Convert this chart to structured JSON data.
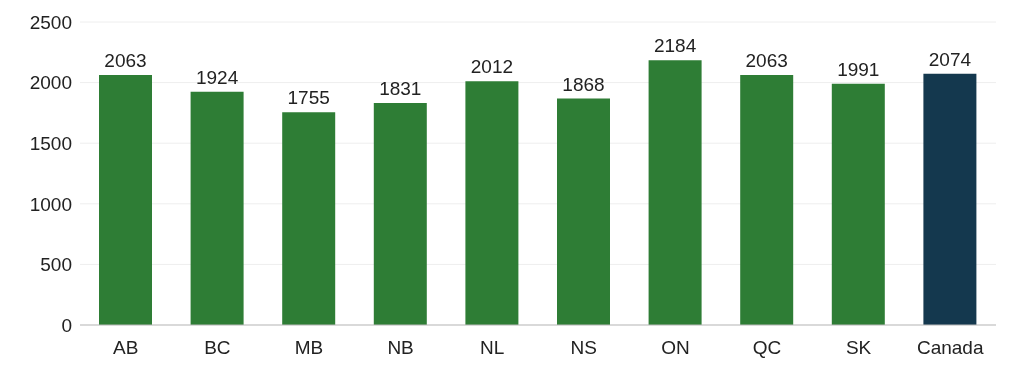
{
  "chart_data": {
    "type": "bar",
    "categories": [
      "AB",
      "BC",
      "MB",
      "NB",
      "NL",
      "NS",
      "ON",
      "QC",
      "SK",
      "Canada"
    ],
    "values": [
      2063,
      1924,
      1755,
      1831,
      2012,
      1868,
      2184,
      2063,
      1991,
      2074
    ],
    "colors": [
      "#2e7d35",
      "#2e7d35",
      "#2e7d35",
      "#2e7d35",
      "#2e7d35",
      "#2e7d35",
      "#2e7d35",
      "#2e7d35",
      "#2e7d35",
      "#14384e"
    ],
    "ylim": [
      0,
      2500
    ],
    "yticks": [
      0,
      500,
      1000,
      1500,
      2000,
      2500
    ],
    "grid": "y",
    "data_labels": true
  }
}
